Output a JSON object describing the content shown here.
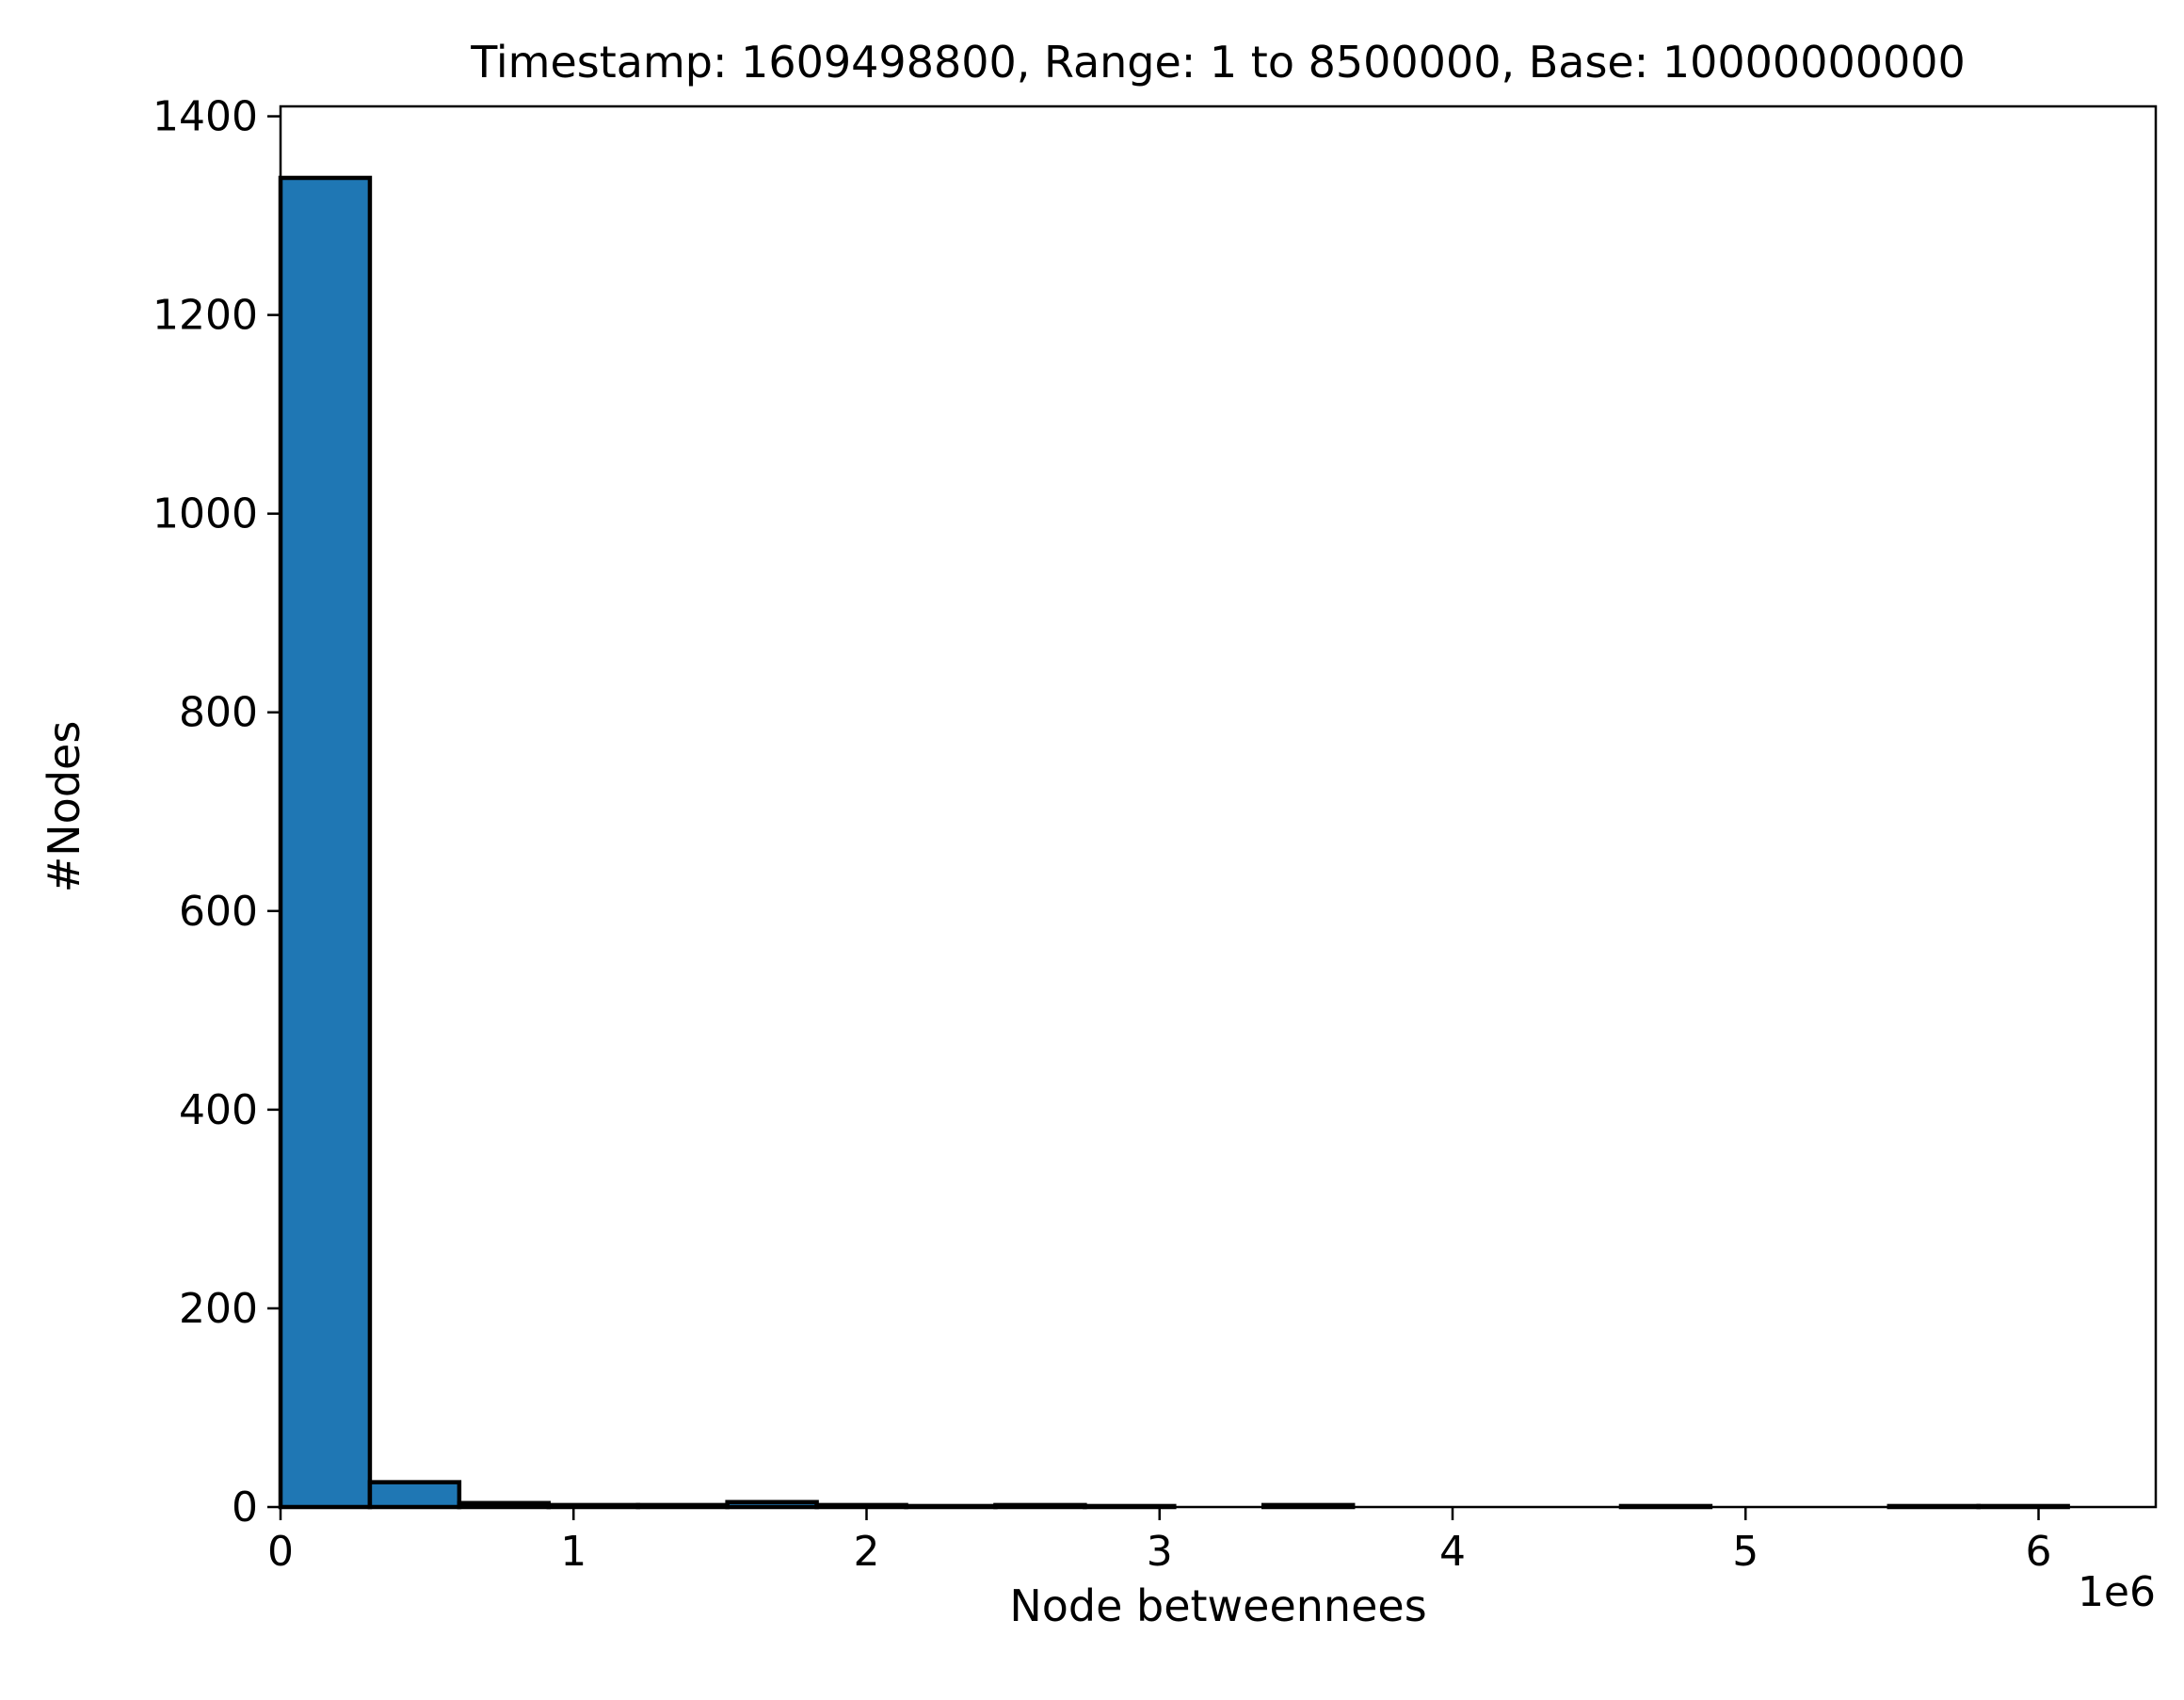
{
  "chart_data": {
    "type": "bar",
    "title": "Timestamp: 1609498800, Range: 1 to 8500000, Base: 10000000000",
    "xlabel": "Node betweennees",
    "ylabel": "#Nodes",
    "x_offset_label": "1e6",
    "x_scale": 1000000,
    "xlim": [
      0,
      6400000
    ],
    "ylim": [
      0,
      1410
    ],
    "x_ticks": [
      0,
      1,
      2,
      3,
      4,
      5,
      6
    ],
    "y_ticks": [
      0,
      200,
      400,
      600,
      800,
      1000,
      1200,
      1400
    ],
    "grid": false,
    "bar_color": "#1f77b4",
    "edge_color": "#000000",
    "bins": [
      {
        "start": 0,
        "end": 305000,
        "count": 1338
      },
      {
        "start": 305000,
        "end": 610000,
        "count": 25
      },
      {
        "start": 610000,
        "end": 915000,
        "count": 4
      },
      {
        "start": 915000,
        "end": 1220000,
        "count": 2
      },
      {
        "start": 1220000,
        "end": 1525000,
        "count": 2
      },
      {
        "start": 1525000,
        "end": 1830000,
        "count": 5
      },
      {
        "start": 1830000,
        "end": 2135000,
        "count": 2
      },
      {
        "start": 2135000,
        "end": 2440000,
        "count": 1
      },
      {
        "start": 2440000,
        "end": 2745000,
        "count": 2
      },
      {
        "start": 2745000,
        "end": 3050000,
        "count": 1
      },
      {
        "start": 3050000,
        "end": 3355000,
        "count": 0
      },
      {
        "start": 3355000,
        "end": 3660000,
        "count": 2
      },
      {
        "start": 3660000,
        "end": 3965000,
        "count": 0
      },
      {
        "start": 3965000,
        "end": 4270000,
        "count": 0
      },
      {
        "start": 4270000,
        "end": 4575000,
        "count": 0
      },
      {
        "start": 4575000,
        "end": 4880000,
        "count": 1
      },
      {
        "start": 4880000,
        "end": 5185000,
        "count": 0
      },
      {
        "start": 5185000,
        "end": 5490000,
        "count": 0
      },
      {
        "start": 5490000,
        "end": 5795000,
        "count": 1
      },
      {
        "start": 5795000,
        "end": 6100000,
        "count": 1
      }
    ]
  }
}
